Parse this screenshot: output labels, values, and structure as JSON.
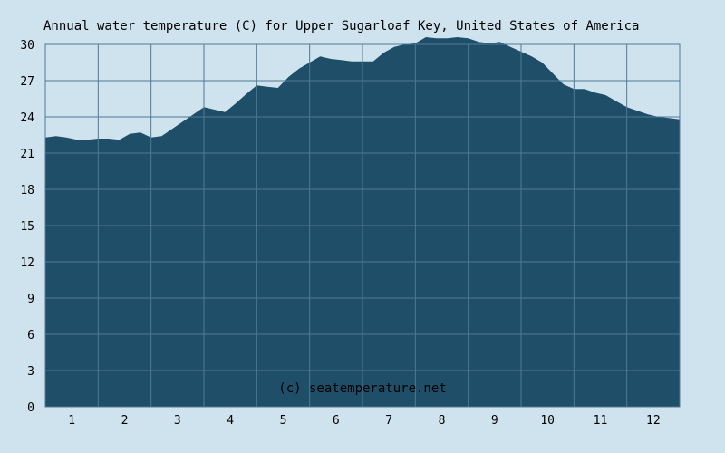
{
  "chart_data": {
    "type": "area",
    "title": "Annual water temperature (C) for Upper Sugarloaf Key, United States of America",
    "xlabel": "",
    "ylabel": "",
    "categories": [
      "1",
      "2",
      "3",
      "4",
      "5",
      "6",
      "7",
      "8",
      "9",
      "10",
      "11",
      "12"
    ],
    "ylim": [
      0,
      30
    ],
    "yticks": [
      0,
      3,
      6,
      9,
      12,
      15,
      18,
      21,
      24,
      27,
      30
    ],
    "grid": true,
    "credit": "(c) seatemperature.net",
    "fill_color": "#1f4e69",
    "grid_color": "#4f7a94",
    "background_color": "#cfe3ee",
    "series": [
      {
        "x": [
          0.5,
          0.7,
          0.9,
          1.1,
          1.3,
          1.5,
          1.7,
          1.9,
          2.1,
          2.3,
          2.5,
          2.7,
          2.9,
          3.1,
          3.3,
          3.5,
          3.7,
          3.9,
          4.1,
          4.3,
          4.5,
          4.7,
          4.9,
          5.1,
          5.3,
          5.5,
          5.7,
          5.9,
          6.1,
          6.3,
          6.5,
          6.7,
          6.9,
          7.1,
          7.3,
          7.5,
          7.7,
          7.9,
          8.1,
          8.3,
          8.5,
          8.7,
          8.9,
          9.1,
          9.3,
          9.5,
          9.7,
          9.9,
          10.1,
          10.3,
          10.5,
          10.7,
          10.9,
          11.1,
          11.3,
          11.5,
          11.7,
          11.9,
          12.1,
          12.3,
          12.5
        ],
        "values": [
          22.3,
          22.4,
          22.3,
          22.1,
          22.1,
          22.2,
          22.2,
          22.1,
          22.6,
          22.7,
          22.3,
          22.4,
          23.0,
          23.6,
          24.2,
          24.8,
          24.6,
          24.4,
          25.1,
          25.9,
          26.6,
          26.5,
          26.4,
          27.3,
          28.0,
          28.5,
          29.0,
          28.8,
          28.7,
          28.6,
          28.6,
          28.6,
          29.3,
          29.8,
          30.0,
          30.1,
          30.6,
          30.5,
          30.5,
          30.6,
          30.5,
          30.2,
          30.1,
          30.2,
          29.8,
          29.4,
          29.0,
          28.5,
          27.6,
          26.7,
          26.3,
          26.3,
          26.0,
          25.8,
          25.3,
          24.8,
          24.5,
          24.2,
          24.0,
          23.9,
          23.8
        ]
      }
    ]
  }
}
